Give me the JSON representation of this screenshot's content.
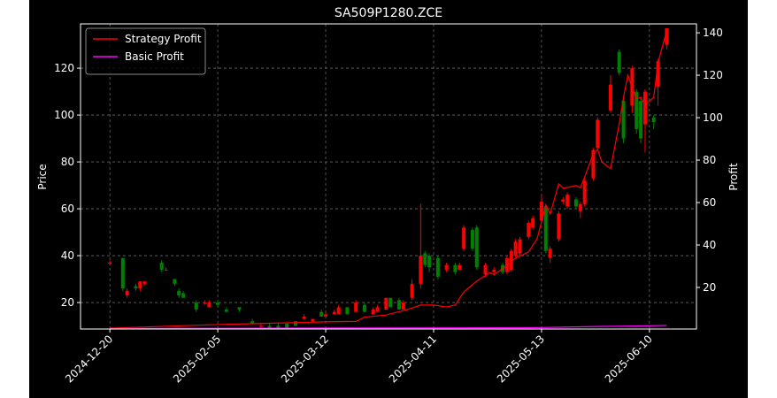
{
  "chart_data": {
    "type": "candlestick",
    "title": "SA509P1280.ZCE",
    "ylabel": "Price",
    "y2label": "Profit",
    "x": [
      0,
      3,
      4,
      6,
      7,
      8,
      12,
      13,
      15,
      16,
      17,
      20,
      22,
      23,
      25,
      27,
      30,
      33,
      35,
      37,
      39,
      41,
      43,
      45,
      47,
      49,
      50,
      52,
      53,
      55,
      57,
      59,
      61,
      62,
      64,
      65,
      67,
      68,
      70,
      72,
      73,
      74,
      76,
      78,
      80,
      81,
      82,
      84,
      85,
      87,
      89,
      91,
      92,
      93,
      94,
      95,
      97,
      98,
      100,
      101,
      102,
      104,
      105,
      106,
      108,
      109,
      110,
      112,
      113,
      116,
      118,
      119,
      121,
      122,
      123,
      124,
      126,
      127,
      129
    ],
    "open": [
      37,
      39,
      23,
      27,
      26,
      28,
      37,
      34,
      30,
      25,
      24,
      20,
      20,
      18,
      20,
      17,
      18,
      12,
      10,
      10,
      10,
      11,
      12,
      13,
      12,
      16,
      14,
      15,
      15,
      18,
      16,
      19,
      15,
      16,
      17,
      22,
      21,
      17,
      22,
      28,
      41,
      40,
      39,
      34,
      36,
      34,
      43,
      51,
      52,
      32,
      33,
      36,
      33,
      34,
      40,
      41,
      48,
      52,
      55,
      61,
      39,
      47,
      63,
      61,
      64,
      59,
      62,
      73,
      86,
      102,
      127,
      106,
      104,
      110,
      106,
      96,
      99,
      112,
      130
    ],
    "high": [
      38,
      39,
      26,
      28,
      29,
      29,
      38,
      35,
      30,
      26,
      25,
      21,
      21,
      21,
      21,
      18,
      18,
      13,
      11,
      11,
      11,
      11,
      12,
      15,
      13,
      17,
      16,
      17,
      19,
      18,
      21,
      20,
      18,
      19,
      22,
      22,
      22,
      21,
      30,
      62,
      42,
      41,
      40,
      37,
      37,
      37,
      53,
      52,
      53,
      37,
      35,
      37,
      40,
      43,
      47,
      48,
      55,
      57,
      66,
      62,
      44,
      59,
      65,
      67,
      65,
      63,
      73,
      86,
      99,
      117,
      128,
      107,
      121,
      111,
      107,
      111,
      100,
      124,
      137
    ],
    "low": [
      36,
      25,
      22,
      25,
      25,
      27,
      33,
      34,
      27,
      22,
      22,
      16,
      19,
      18,
      18,
      16,
      16,
      11,
      9,
      9,
      9,
      9,
      10,
      13,
      12,
      14,
      14,
      15,
      15,
      15,
      16,
      16,
      15,
      16,
      17,
      18,
      17,
      17,
      21,
      26,
      35,
      33,
      30,
      33,
      32,
      34,
      42,
      42,
      34,
      31,
      32,
      32,
      32,
      33,
      39,
      40,
      47,
      51,
      54,
      41,
      37,
      46,
      62,
      60,
      60,
      56,
      61,
      72,
      85,
      101,
      117,
      88,
      101,
      92,
      88,
      84,
      94,
      104,
      128
    ],
    "close": [
      37,
      26,
      25,
      26,
      29,
      29,
      34,
      34,
      28,
      23,
      22,
      17,
      20,
      20,
      19,
      16,
      17,
      11,
      10,
      9,
      9,
      9,
      10,
      14,
      13,
      14,
      15,
      16,
      18,
      15,
      20,
      16,
      17,
      18,
      22,
      18,
      17,
      20,
      28,
      40,
      36,
      35,
      31,
      36,
      33,
      36,
      52,
      43,
      35,
      36,
      34,
      33,
      39,
      42,
      46,
      47,
      54,
      56,
      63,
      42,
      43,
      58,
      64,
      66,
      61,
      62,
      72,
      85,
      98,
      113,
      118,
      90,
      120,
      94,
      90,
      110,
      97,
      123,
      137
    ],
    "up_color": "#ff0000",
    "down_color": "#008000",
    "series": [
      {
        "name": "Strategy Profit",
        "color": "#ff0000",
        "axis": "y2",
        "x": [
          0,
          25,
          50,
          57,
          59,
          64,
          69,
          72,
          75,
          78,
          80,
          82,
          85,
          88,
          89,
          92,
          94,
          97,
          99,
          101,
          102,
          104,
          105,
          108,
          109,
          110,
          112,
          113,
          114,
          116,
          118,
          119,
          120,
          122,
          123,
          124,
          126,
          127,
          129
        ],
        "values": [
          0.8,
          2.5,
          3.8,
          4,
          6,
          7,
          9.6,
          11.7,
          11.7,
          10.8,
          11.7,
          17.9,
          23,
          27,
          26,
          30.4,
          33.8,
          36.7,
          43,
          58.8,
          54.6,
          68.8,
          66.7,
          68,
          67,
          72,
          83,
          85,
          79,
          76,
          97,
          109.6,
          120,
          108.8,
          109.6,
          106,
          109.6,
          126,
          140.8
        ]
      },
      {
        "name": "Basic Profit",
        "color": "#ff00ff",
        "axis": "y2",
        "x": [
          0,
          57,
          97,
          113,
          122,
          129
        ],
        "values": [
          0.6,
          0.9,
          1,
          1.6,
          1.8,
          2.1
        ]
      }
    ],
    "xlim": [
      -6.8,
      135.9
    ],
    "xticks": [
      {
        "value": 0,
        "label": "2024-12-20"
      },
      {
        "value": 25,
        "label": "2025-02-05"
      },
      {
        "value": 50,
        "label": "2025-03-12"
      },
      {
        "value": 75,
        "label": "2025-04-11"
      },
      {
        "value": 100,
        "label": "2025-05-13"
      },
      {
        "value": 125,
        "label": "2025-06-10"
      }
    ],
    "ylim": [
      8.7,
      138.9
    ],
    "yticks": [
      20,
      40,
      60,
      80,
      100,
      120
    ],
    "y2lim": [
      0.4,
      144.2
    ],
    "y2ticks": [
      20,
      40,
      60,
      80,
      100,
      120,
      140
    ],
    "grid": true,
    "legend": "upper left"
  }
}
